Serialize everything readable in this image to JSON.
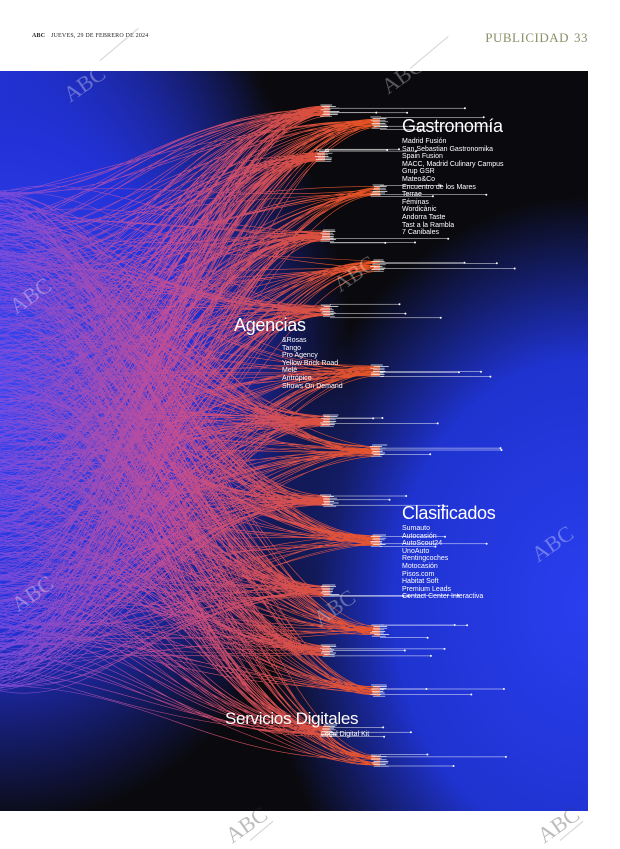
{
  "header": {
    "brand": "ABC",
    "date": "JUEVES, 29 DE FEBRERO DE 2024",
    "section": "PUBLICIDAD",
    "page_number": "33"
  },
  "watermark_text": "ABC",
  "colors": {
    "background_dark": "#0a0a0e",
    "blue": "#1f3be0",
    "purple": "#8a48d8",
    "orange": "#ff5a1e",
    "section_gold": "#8a8f66"
  },
  "groups": {
    "gastronomia": {
      "title": "Gastronomía",
      "items": [
        "Madrid Fusión",
        "San Sebastian Gastronomika",
        "Spain Fusion",
        "MACC, Madrid Culinary Campus",
        "Grup GSR",
        "Mateo&Co",
        "Encuentro de los Mares",
        "Terrae",
        "Féminas",
        "Wordicànic",
        "Andorra Taste",
        "Tast a la Rambla",
        "7 Canibales"
      ]
    },
    "agencias": {
      "title": "Agencias",
      "items": [
        "&Rosas",
        "Tango",
        "Pro Agency",
        "Yellow Brick Road",
        "Melé",
        "Antrópico",
        "Shows On Demand"
      ]
    },
    "clasificados": {
      "title": "Clasificados",
      "items": [
        "Sumauto",
        "Autocasión",
        "AutoScout24",
        "UnoAuto",
        "Rentingcoches",
        "Motocasión",
        "Pisos.com",
        "Habitat Soft",
        "Premium Leads",
        "Contact Center Interactiva"
      ]
    },
    "servicios_digitales": {
      "title": "Servicios Digitales",
      "items": [
        "Local Digital Kit"
      ]
    }
  }
}
